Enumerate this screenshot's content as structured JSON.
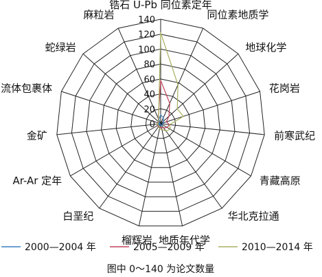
{
  "chart_data": {
    "type": "radar",
    "categories": [
      "锆石 U-Pb 同位素定年",
      "同位素地质学",
      "地球化学",
      "花岗岩",
      "前寒武纪",
      "青藏高原",
      "华北克拉通",
      "地质年代学",
      "榴辉岩",
      "白垩纪",
      "Ar-Ar 定年",
      "金矿",
      "流体包裹体",
      "蛇绿岩",
      "麻粒岩"
    ],
    "rlim": [
      0,
      140
    ],
    "ticks": [
      0,
      20,
      40,
      60,
      80,
      100,
      120,
      140
    ],
    "grid": true,
    "series": [
      {
        "name": "2000—2004 年",
        "color": "#3a7fc1",
        "values": [
          12,
          9,
          5,
          4,
          3,
          2,
          3,
          2,
          2,
          1,
          4,
          3,
          1,
          2,
          6
        ]
      },
      {
        "name": "2005—2009 年",
        "color": "#c0405a",
        "values": [
          58,
          30,
          15,
          8,
          12,
          10,
          7,
          5,
          6,
          5,
          5,
          5,
          3,
          4,
          8
        ]
      },
      {
        "name": "2010—2014 年",
        "color": "#a8b060",
        "values": [
          122,
          57,
          30,
          32,
          12,
          15,
          12,
          8,
          7,
          4,
          4,
          5,
          3,
          4,
          7
        ]
      }
    ],
    "legend_position": "bottom",
    "note": "图中 0～140 为论文数量"
  }
}
